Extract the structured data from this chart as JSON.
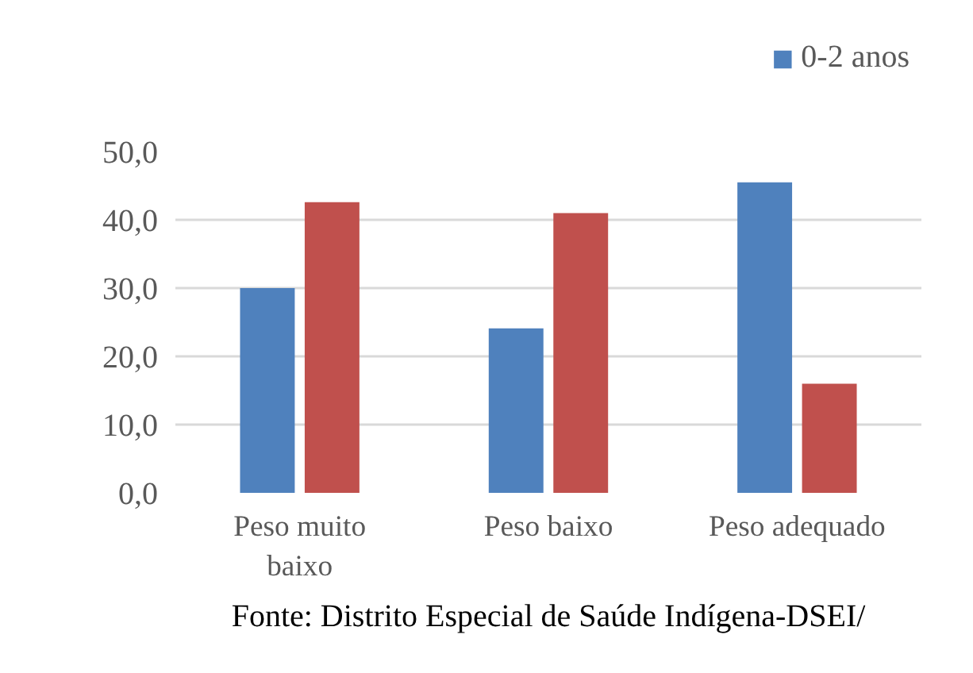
{
  "chart_data": {
    "type": "bar",
    "categories": [
      "Peso muito baixo",
      "Peso baixo",
      "Peso adequado"
    ],
    "series": [
      {
        "name": "0-2 anos",
        "color": "#4f81bd",
        "values": [
          30.0,
          24.1,
          45.5
        ]
      },
      {
        "color": "#c0504d",
        "values": [
          42.6,
          41.0,
          16.0
        ]
      }
    ],
    "ylim": [
      0,
      50
    ],
    "yticks": [
      {
        "value": 0,
        "label": "0,0"
      },
      {
        "value": 10,
        "label": "10,0"
      },
      {
        "value": 20,
        "label": "20,0"
      },
      {
        "value": 30,
        "label": "30,0"
      },
      {
        "value": 40,
        "label": "40,0"
      },
      {
        "value": 50,
        "label": "50,0"
      }
    ],
    "grid": "y",
    "legend": "top right",
    "annotations": [
      "Fonte: Distrito Especial de Saúde Indígena-DSEI/"
    ]
  }
}
